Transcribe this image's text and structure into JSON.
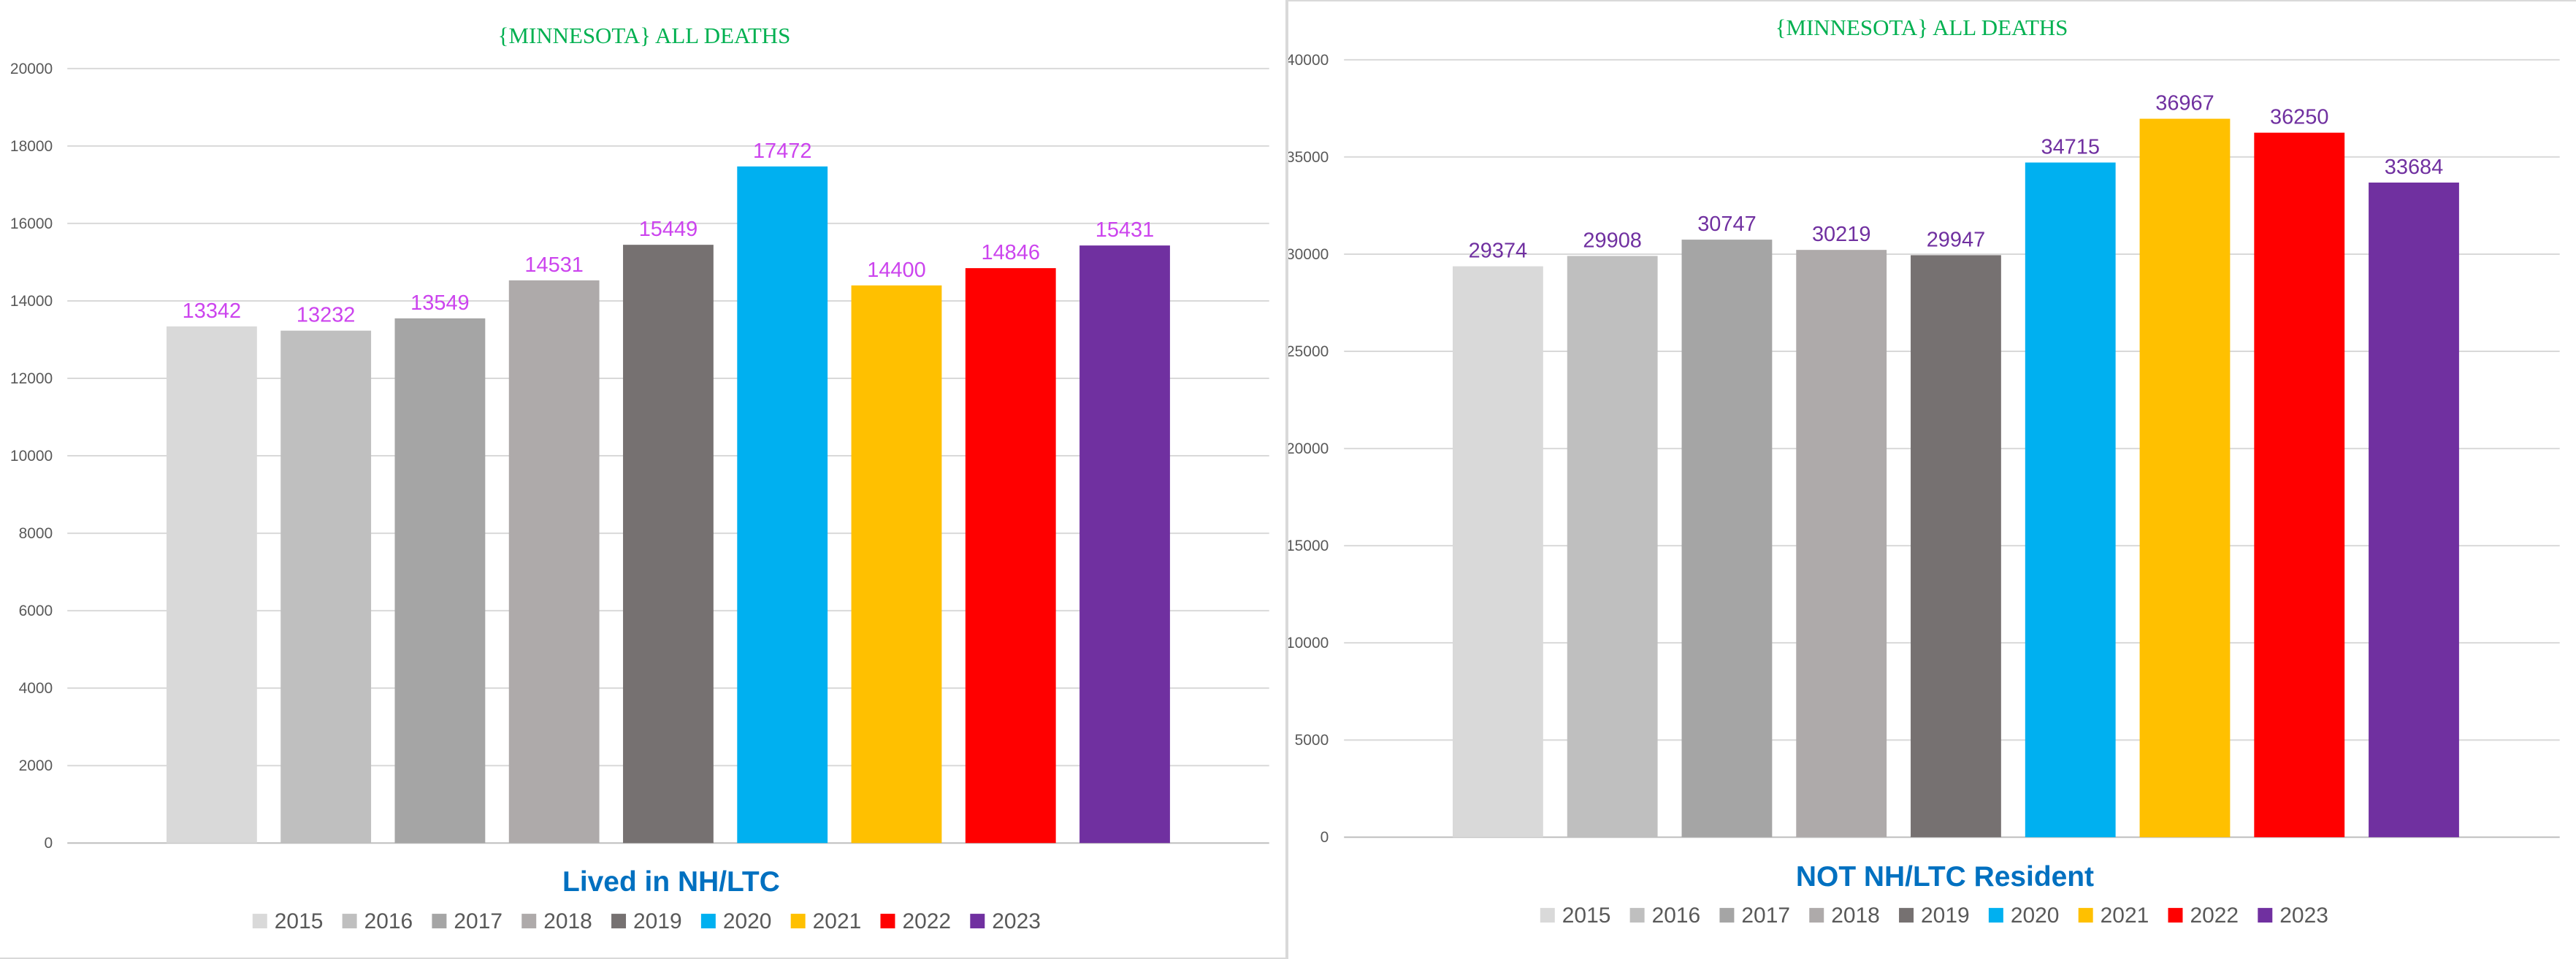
{
  "chart_data": [
    {
      "type": "bar",
      "title": "{MINNESOTA}   ALL DEATHS",
      "xlabel": "Lived in NH/LTC",
      "ylabel": "",
      "categories": [
        "2015",
        "2016",
        "2017",
        "2018",
        "2019",
        "2020",
        "2021",
        "2022",
        "2023"
      ],
      "values": [
        13342,
        13232,
        13549,
        14531,
        15449,
        17472,
        14400,
        14846,
        15431
      ],
      "ylim": [
        0,
        20000
      ],
      "yticks": [
        0,
        2000,
        4000,
        6000,
        8000,
        10000,
        12000,
        14000,
        16000,
        18000,
        20000
      ],
      "colors": [
        "#d9d9d9",
        "#bfbfbf",
        "#a5a5a5",
        "#aeaaaa",
        "#767171",
        "#00b0f0",
        "#ffc000",
        "#ff0000",
        "#7030a0"
      ],
      "data_label_color": "#cc44ee",
      "grid": true,
      "legend": "bottom"
    },
    {
      "type": "bar",
      "title": "{MINNESOTA}   ALL DEATHS",
      "xlabel": "NOT NH/LTC Resident",
      "ylabel": "",
      "categories": [
        "2015",
        "2016",
        "2017",
        "2018",
        "2019",
        "2020",
        "2021",
        "2022",
        "2023"
      ],
      "values": [
        29374,
        29908,
        30747,
        30219,
        29947,
        34715,
        36967,
        36250,
        33684
      ],
      "ylim": [
        0,
        40000
      ],
      "yticks": [
        0,
        5000,
        10000,
        15000,
        20000,
        25000,
        30000,
        35000,
        40000
      ],
      "colors": [
        "#d9d9d9",
        "#bfbfbf",
        "#a5a5a5",
        "#aeaaaa",
        "#767171",
        "#00b0f0",
        "#ffc000",
        "#ff0000",
        "#7030a0"
      ],
      "data_label_color": "#7030a0",
      "grid": true,
      "legend": "bottom"
    }
  ]
}
